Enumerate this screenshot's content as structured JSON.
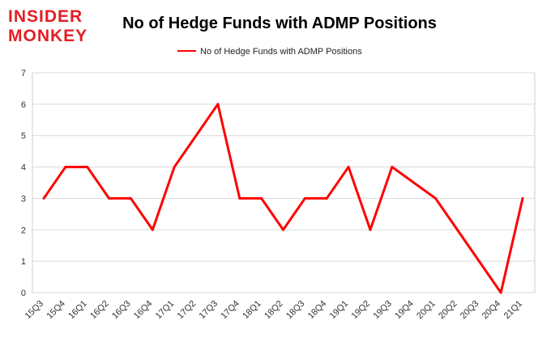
{
  "logo": {
    "line1": "INSIDER",
    "line2": "MONKEY",
    "color": "#e31e24"
  },
  "chart_data": {
    "type": "line",
    "title": "No of Hedge Funds with ADMP Positions",
    "xlabel": "",
    "ylabel": "",
    "ylim": [
      0,
      7
    ],
    "yticks": [
      0,
      1,
      2,
      3,
      4,
      5,
      6,
      7
    ],
    "grid": true,
    "legend_position": "top-center",
    "categories": [
      "15Q3",
      "15Q4",
      "16Q1",
      "16Q2",
      "16Q3",
      "16Q4",
      "17Q1",
      "17Q2",
      "17Q3",
      "17Q4",
      "18Q1",
      "18Q2",
      "18Q3",
      "18Q4",
      "19Q1",
      "19Q2",
      "19Q3",
      "19Q4",
      "20Q1",
      "20Q2",
      "20Q3",
      "20Q4",
      "21Q1"
    ],
    "series": [
      {
        "name": "No of Hedge Funds with ADMP Positions",
        "color": "#ff0000",
        "values": [
          3,
          4,
          4,
          3,
          3,
          2,
          4,
          5,
          6,
          3,
          3,
          2,
          3,
          3,
          4,
          2,
          4,
          3.5,
          3,
          2,
          1,
          0,
          3
        ]
      }
    ]
  }
}
